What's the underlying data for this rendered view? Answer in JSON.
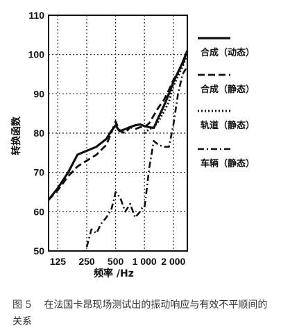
{
  "chart_data": {
    "type": "line",
    "ylabel": "转换函数",
    "xlabel": "频率 /Hz",
    "xscale": "log",
    "xlim": [
      100,
      2800
    ],
    "ylim": [
      50,
      110
    ],
    "y_ticks": [
      50,
      60,
      70,
      80,
      90,
      100,
      110
    ],
    "x_ticks": [
      {
        "value": 125,
        "label": "125"
      },
      {
        "value": 250,
        "label": "250"
      },
      {
        "value": 500,
        "label": "500"
      },
      {
        "value": 1000,
        "label": "1 000"
      },
      {
        "value": 2000,
        "label": "2 000"
      }
    ],
    "grid": true,
    "legend_position": "right",
    "series": [
      {
        "name": "合成（动态）",
        "style": "solid",
        "x": [
          100,
          125,
          160,
          200,
          250,
          315,
          400,
          450,
          500,
          550,
          630,
          700,
          800,
          900,
          1000,
          1120,
          1250,
          1400,
          1600,
          1800,
          2000,
          2240,
          2500,
          2800
        ],
        "y": [
          63,
          66,
          70,
          74.5,
          75.5,
          76.5,
          78.5,
          80.5,
          82,
          80.5,
          81,
          81.5,
          82,
          82.2,
          81.8,
          81.5,
          81.3,
          84,
          87,
          90,
          93,
          95.5,
          98,
          101
        ]
      },
      {
        "name": "合成（静态）",
        "style": "dashed",
        "x": [
          100,
          125,
          160,
          200,
          250,
          315,
          400,
          450,
          500,
          530,
          560,
          630,
          710,
          800,
          900,
          1000,
          1120,
          1250,
          1400,
          1600,
          1800,
          2000,
          2240,
          2500,
          2800
        ],
        "y": [
          63,
          65.5,
          69,
          71.5,
          73,
          74.5,
          77,
          80,
          83,
          81.5,
          80.5,
          80,
          81.5,
          81,
          81.5,
          81.5,
          82.5,
          84.5,
          86.5,
          88.5,
          91,
          93.5,
          95.5,
          97.5,
          100.5
        ]
      },
      {
        "name": "轨道（静态）",
        "style": "dotted",
        "x": [
          1000,
          1120,
          1250,
          1400,
          1600,
          1800,
          2000,
          2240,
          2500,
          2800
        ],
        "y": [
          80,
          81,
          81.5,
          83,
          85.5,
          88,
          92,
          94.5,
          97,
          100
        ]
      },
      {
        "name": "车辆（静态）",
        "style": "dashdot",
        "x": [
          250,
          280,
          315,
          355,
          400,
          450,
          480,
          500,
          560,
          630,
          710,
          800,
          900,
          950,
          1000,
          1060,
          1120,
          1250,
          1400,
          1600,
          1800,
          2000,
          2240,
          2500,
          2800
        ],
        "y": [
          51,
          55.5,
          54.5,
          57,
          58.5,
          60.5,
          63,
          65,
          63.5,
          60,
          62,
          58.5,
          60,
          61,
          61,
          66,
          71,
          78,
          77,
          76.5,
          76.5,
          82,
          90,
          95,
          97
        ]
      }
    ]
  },
  "caption": {
    "figure_number": "图 5",
    "text": "在法国卡昂现场测试出的振动响应与有效不平顺间的关系"
  }
}
